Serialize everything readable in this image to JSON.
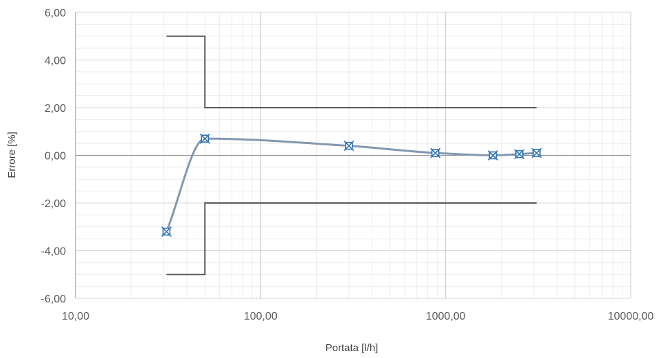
{
  "chart_data": {
    "type": "scatter",
    "title": "",
    "xlabel": "Portata [l/h]",
    "ylabel": "Errore [%]",
    "x_scale": "log",
    "xlim": [
      10,
      10000
    ],
    "ylim": [
      -6,
      6
    ],
    "x_tick_labels": [
      "10,00",
      "100,00",
      "1000,00",
      "10000,00"
    ],
    "y_tick_labels": [
      "6,00",
      "4,00",
      "2,00",
      "0,00",
      "-2,00",
      "-4,00",
      "-6,00"
    ],
    "grid": true,
    "legend": "none",
    "series": [
      {
        "kind": "measured-points-smoothed",
        "color": "#8497b0",
        "marker_color": "#2e75b6",
        "points": [
          {
            "x": 31,
            "y": -3.2
          },
          {
            "x": 50,
            "y": 0.7
          },
          {
            "x": 300,
            "y": 0.4
          },
          {
            "x": 880,
            "y": 0.1
          },
          {
            "x": 1800,
            "y": 0.0
          },
          {
            "x": 2500,
            "y": 0.05
          },
          {
            "x": 3100,
            "y": 0.1
          }
        ]
      },
      {
        "kind": "upper-limit",
        "color": "#595959",
        "points": [
          {
            "x": 31,
            "y": 5
          },
          {
            "x": 50,
            "y": 5
          },
          {
            "x": 50,
            "y": 2
          },
          {
            "x": 3100,
            "y": 2
          }
        ]
      },
      {
        "kind": "lower-limit",
        "color": "#595959",
        "points": [
          {
            "x": 31,
            "y": -5
          },
          {
            "x": 50,
            "y": -5
          },
          {
            "x": 50,
            "y": -2
          },
          {
            "x": 3100,
            "y": -2
          }
        ]
      }
    ]
  }
}
